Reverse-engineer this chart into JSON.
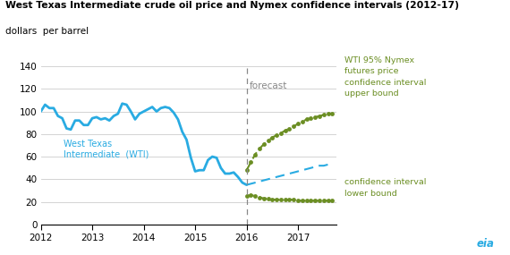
{
  "title": "West Texas Intermediate crude oil price and Nymex confidence intervals (2012-17)",
  "subtitle": "dollars  per barrel",
  "forecast_label": "forecast",
  "wti_color": "#29ABE2",
  "upper_color": "#6B8E23",
  "lower_color": "#6B8E23",
  "forecast_color": "#29ABE2",
  "forecast_line_x": 2016.0,
  "ylim": [
    0,
    140
  ],
  "yticks": [
    0,
    20,
    40,
    60,
    80,
    100,
    120,
    140
  ],
  "xlim": [
    2012.0,
    2017.75
  ],
  "xticks": [
    2012,
    2013,
    2014,
    2015,
    2016,
    2017
  ],
  "wti_x": [
    2012.0,
    2012.083,
    2012.167,
    2012.25,
    2012.333,
    2012.417,
    2012.5,
    2012.583,
    2012.667,
    2012.75,
    2012.833,
    2012.917,
    2013.0,
    2013.083,
    2013.167,
    2013.25,
    2013.333,
    2013.417,
    2013.5,
    2013.583,
    2013.667,
    2013.75,
    2013.833,
    2013.917,
    2014.0,
    2014.083,
    2014.167,
    2014.25,
    2014.333,
    2014.417,
    2014.5,
    2014.583,
    2014.667,
    2014.75,
    2014.833,
    2014.917,
    2015.0,
    2015.083,
    2015.167,
    2015.25,
    2015.333,
    2015.417,
    2015.5,
    2015.583,
    2015.667,
    2015.75,
    2015.833,
    2015.917,
    2016.0
  ],
  "wti_y": [
    100,
    106,
    103,
    103,
    96,
    94,
    85,
    84,
    92,
    92,
    88,
    88,
    94,
    95,
    93,
    94,
    92,
    96,
    98,
    107,
    106,
    100,
    93,
    98,
    100,
    102,
    104,
    100,
    103,
    104,
    103,
    99,
    93,
    82,
    75,
    59,
    47,
    48,
    48,
    57,
    60,
    59,
    50,
    45,
    45,
    46,
    42,
    37,
    35
  ],
  "upper_x": [
    2016.0,
    2016.083,
    2016.167,
    2016.25,
    2016.333,
    2016.417,
    2016.5,
    2016.583,
    2016.667,
    2016.75,
    2016.833,
    2016.917,
    2017.0,
    2017.083,
    2017.167,
    2017.25,
    2017.333,
    2017.417,
    2017.5,
    2017.583,
    2017.667
  ],
  "upper_y": [
    48,
    55,
    62,
    67,
    71,
    74,
    77,
    79,
    81,
    83,
    85,
    87,
    89,
    91,
    93,
    94,
    95,
    96,
    97,
    98,
    98
  ],
  "lower_x": [
    2016.0,
    2016.083,
    2016.167,
    2016.25,
    2016.333,
    2016.417,
    2016.5,
    2016.583,
    2016.667,
    2016.75,
    2016.833,
    2016.917,
    2017.0,
    2017.083,
    2017.167,
    2017.25,
    2017.333,
    2017.417,
    2017.5,
    2017.583,
    2017.667
  ],
  "lower_y": [
    25,
    26,
    25,
    24,
    23,
    23,
    22,
    22,
    22,
    22,
    22,
    22,
    21,
    21,
    21,
    21,
    21,
    21,
    21,
    21,
    21
  ],
  "forecast_dashed_x": [
    2016.0,
    2016.083,
    2016.167,
    2016.25,
    2016.333,
    2016.417,
    2016.5,
    2016.583,
    2016.667,
    2016.75,
    2016.833,
    2016.917,
    2017.0,
    2017.083,
    2017.167,
    2017.25,
    2017.333,
    2017.417,
    2017.5,
    2017.583,
    2017.667
  ],
  "forecast_dashed_y": [
    35,
    36,
    37,
    38,
    39,
    40,
    41,
    42,
    43,
    44,
    45,
    46,
    47,
    48,
    49,
    50,
    51,
    52,
    52,
    53,
    53
  ],
  "wti_label": "West Texas\nIntermediate  (WTI)",
  "upper_label": "WTI 95% Nymex\nfutures price\nconfidence interval\nupper bound",
  "lower_label": "confidence interval\nlower bound",
  "eia_color": "#29ABE2",
  "gray_color": "#888888"
}
